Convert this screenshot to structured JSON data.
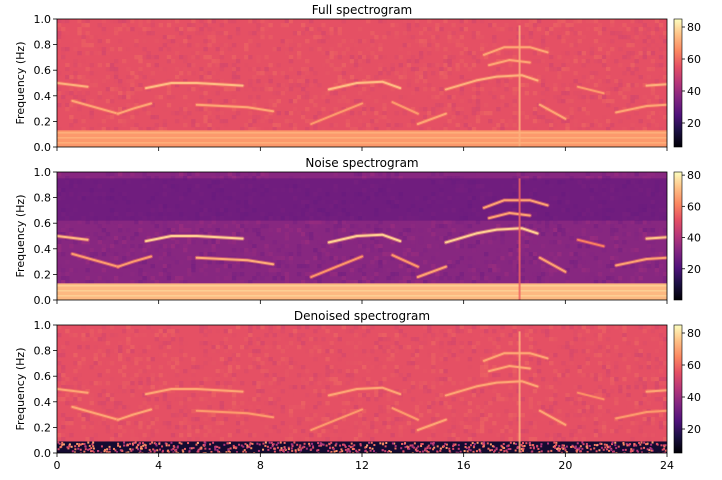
{
  "chart_data": [
    {
      "type": "heatmap",
      "title": "Full spectrogram",
      "ylabel": "Frequency (Hz)",
      "ylim": [
        0.0,
        1.0
      ],
      "y_ticks": [
        "0.0",
        "0.2",
        "0.4",
        "0.6",
        "0.8",
        "1.0"
      ],
      "colorbar": {
        "ticks": [
          "20",
          "40",
          "60",
          "80"
        ],
        "range": [
          5,
          85
        ],
        "colormap": "magma"
      },
      "base_level": 55,
      "floor_band": {
        "y_max": 0.13,
        "level": 68
      },
      "tracks": [
        {
          "x": [
            0,
            1.2
          ],
          "y": [
            0.5,
            0.47
          ],
          "level": 72
        },
        {
          "x": [
            0.6,
            2.4
          ],
          "y": [
            0.36,
            0.26
          ],
          "level": 70
        },
        {
          "x": [
            2.4,
            3.0,
            3.7
          ],
          "y": [
            0.26,
            0.3,
            0.34
          ],
          "level": 70
        },
        {
          "x": [
            3.5,
            4.5,
            5.5,
            7.3
          ],
          "y": [
            0.46,
            0.5,
            0.5,
            0.48
          ],
          "level": 74
        },
        {
          "x": [
            5.5,
            7.5,
            8.5
          ],
          "y": [
            0.33,
            0.31,
            0.28
          ],
          "level": 70
        },
        {
          "x": [
            10.0,
            11.0,
            12.0
          ],
          "y": [
            0.18,
            0.26,
            0.34
          ],
          "level": 68
        },
        {
          "x": [
            10.7,
            11.8,
            12.8,
            13.5
          ],
          "y": [
            0.45,
            0.5,
            0.51,
            0.46
          ],
          "level": 74
        },
        {
          "x": [
            13.2,
            14.2
          ],
          "y": [
            0.35,
            0.26
          ],
          "level": 68
        },
        {
          "x": [
            14.2,
            15.3
          ],
          "y": [
            0.18,
            0.26
          ],
          "level": 70
        },
        {
          "x": [
            15.3,
            16.5,
            17.3,
            18.3,
            18.9
          ],
          "y": [
            0.45,
            0.52,
            0.55,
            0.56,
            0.52
          ],
          "level": 72
        },
        {
          "x": [
            16.8,
            17.6,
            18.6,
            19.3
          ],
          "y": [
            0.72,
            0.78,
            0.78,
            0.74
          ],
          "level": 70
        },
        {
          "x": [
            17.0,
            17.8,
            18.6
          ],
          "y": [
            0.64,
            0.68,
            0.66
          ],
          "level": 70
        },
        {
          "x": [
            19.0,
            20.0
          ],
          "y": [
            0.33,
            0.22
          ],
          "level": 70
        },
        {
          "x": [
            20.5,
            21.5
          ],
          "y": [
            0.47,
            0.42
          ],
          "level": 68
        },
        {
          "x": [
            22.0,
            23.2,
            24.0
          ],
          "y": [
            0.27,
            0.32,
            0.33
          ],
          "level": 70
        },
        {
          "x": [
            23.2,
            24.0
          ],
          "y": [
            0.48,
            0.49
          ],
          "level": 72
        }
      ],
      "vertical_lines": [
        {
          "x": 18.2,
          "level": 72
        }
      ]
    },
    {
      "type": "heatmap",
      "title": "Noise spectrogram",
      "ylabel": "Frequency (Hz)",
      "ylim": [
        0.0,
        1.0
      ],
      "y_ticks": [
        "0.0",
        "0.2",
        "0.4",
        "0.6",
        "0.8",
        "1.0"
      ],
      "colorbar": {
        "ticks": [
          "20",
          "40",
          "60",
          "80"
        ],
        "range": [
          0,
          82
        ],
        "colormap": "magma"
      },
      "base_level": 32,
      "floor_band": {
        "y_max": 0.13,
        "level": 70
      },
      "tracks": [
        {
          "x": [
            0,
            1.2
          ],
          "y": [
            0.5,
            0.47
          ],
          "level": 70
        },
        {
          "x": [
            0.6,
            2.4
          ],
          "y": [
            0.36,
            0.26
          ],
          "level": 65
        },
        {
          "x": [
            2.4,
            3.0,
            3.7
          ],
          "y": [
            0.26,
            0.3,
            0.34
          ],
          "level": 65
        },
        {
          "x": [
            3.5,
            4.5,
            5.5,
            7.3
          ],
          "y": [
            0.46,
            0.5,
            0.5,
            0.48
          ],
          "level": 74
        },
        {
          "x": [
            5.5,
            7.5,
            8.5
          ],
          "y": [
            0.33,
            0.31,
            0.28
          ],
          "level": 68
        },
        {
          "x": [
            10.0,
            11.0,
            12.0
          ],
          "y": [
            0.18,
            0.26,
            0.34
          ],
          "level": 64
        },
        {
          "x": [
            10.7,
            11.8,
            12.8,
            13.5
          ],
          "y": [
            0.45,
            0.5,
            0.51,
            0.46
          ],
          "level": 74
        },
        {
          "x": [
            13.2,
            14.2
          ],
          "y": [
            0.35,
            0.26
          ],
          "level": 64
        },
        {
          "x": [
            14.2,
            15.3
          ],
          "y": [
            0.18,
            0.26
          ],
          "level": 66
        },
        {
          "x": [
            15.3,
            16.5,
            17.3,
            18.3,
            18.9
          ],
          "y": [
            0.45,
            0.52,
            0.55,
            0.56,
            0.52
          ],
          "level": 74
        },
        {
          "x": [
            16.8,
            17.6,
            18.6,
            19.3
          ],
          "y": [
            0.72,
            0.78,
            0.78,
            0.74
          ],
          "level": 66
        },
        {
          "x": [
            17.0,
            17.8,
            18.6
          ],
          "y": [
            0.64,
            0.68,
            0.66
          ],
          "level": 66
        },
        {
          "x": [
            19.0,
            20.0
          ],
          "y": [
            0.33,
            0.22
          ],
          "level": 66
        },
        {
          "x": [
            20.5,
            21.5
          ],
          "y": [
            0.47,
            0.42
          ],
          "level": 60
        },
        {
          "x": [
            22.0,
            23.2,
            24.0
          ],
          "y": [
            0.27,
            0.32,
            0.33
          ],
          "level": 66
        },
        {
          "x": [
            23.2,
            24.0
          ],
          "y": [
            0.48,
            0.49
          ],
          "level": 72
        }
      ],
      "vertical_lines": [
        {
          "x": 18.2,
          "level": 55
        }
      ]
    },
    {
      "type": "heatmap",
      "title": "Denoised spectrogram",
      "ylabel": "Frequency (Hz)",
      "xlabel": "",
      "ylim": [
        0.0,
        1.0
      ],
      "xlim": [
        0,
        24
      ],
      "x_ticks": [
        "0",
        "4",
        "8",
        "12",
        "16",
        "20",
        "24"
      ],
      "y_ticks": [
        "0.0",
        "0.2",
        "0.4",
        "0.6",
        "0.8",
        "1.0"
      ],
      "colorbar": {
        "ticks": [
          "20",
          "40",
          "60",
          "80"
        ],
        "range": [
          5,
          85
        ],
        "colormap": "magma"
      },
      "base_level": 55,
      "floor_band": {
        "y_max": 0.09,
        "level": 12
      },
      "tracks": [
        {
          "x": [
            0,
            1.2
          ],
          "y": [
            0.5,
            0.47
          ],
          "level": 70
        },
        {
          "x": [
            0.6,
            2.4
          ],
          "y": [
            0.36,
            0.26
          ],
          "level": 70
        },
        {
          "x": [
            2.4,
            3.0,
            3.7
          ],
          "y": [
            0.26,
            0.3,
            0.34
          ],
          "level": 70
        },
        {
          "x": [
            3.5,
            4.5,
            5.5,
            7.3
          ],
          "y": [
            0.46,
            0.5,
            0.5,
            0.48
          ],
          "level": 70
        },
        {
          "x": [
            5.5,
            7.5,
            8.5
          ],
          "y": [
            0.33,
            0.31,
            0.28
          ],
          "level": 68
        },
        {
          "x": [
            10.0,
            11.0,
            12.0
          ],
          "y": [
            0.18,
            0.26,
            0.34
          ],
          "level": 68
        },
        {
          "x": [
            10.7,
            11.8,
            12.8,
            13.5
          ],
          "y": [
            0.45,
            0.5,
            0.51,
            0.46
          ],
          "level": 70
        },
        {
          "x": [
            13.2,
            14.2
          ],
          "y": [
            0.35,
            0.26
          ],
          "level": 68
        },
        {
          "x": [
            14.2,
            15.3
          ],
          "y": [
            0.18,
            0.26
          ],
          "level": 70
        },
        {
          "x": [
            15.3,
            16.5,
            17.3,
            18.3,
            18.9
          ],
          "y": [
            0.45,
            0.52,
            0.55,
            0.56,
            0.52
          ],
          "level": 70
        },
        {
          "x": [
            16.8,
            17.6,
            18.6,
            19.3
          ],
          "y": [
            0.72,
            0.78,
            0.78,
            0.74
          ],
          "level": 70
        },
        {
          "x": [
            17.0,
            17.8,
            18.6
          ],
          "y": [
            0.64,
            0.68,
            0.66
          ],
          "level": 70
        },
        {
          "x": [
            19.0,
            20.0
          ],
          "y": [
            0.33,
            0.22
          ],
          "level": 70
        },
        {
          "x": [
            20.5,
            21.5
          ],
          "y": [
            0.47,
            0.42
          ],
          "level": 66
        },
        {
          "x": [
            22.0,
            23.2,
            24.0
          ],
          "y": [
            0.27,
            0.32,
            0.33
          ],
          "level": 68
        },
        {
          "x": [
            23.2,
            24.0
          ],
          "y": [
            0.48,
            0.49
          ],
          "level": 70
        }
      ],
      "vertical_lines": [
        {
          "x": 18.2,
          "level": 72
        }
      ]
    }
  ]
}
